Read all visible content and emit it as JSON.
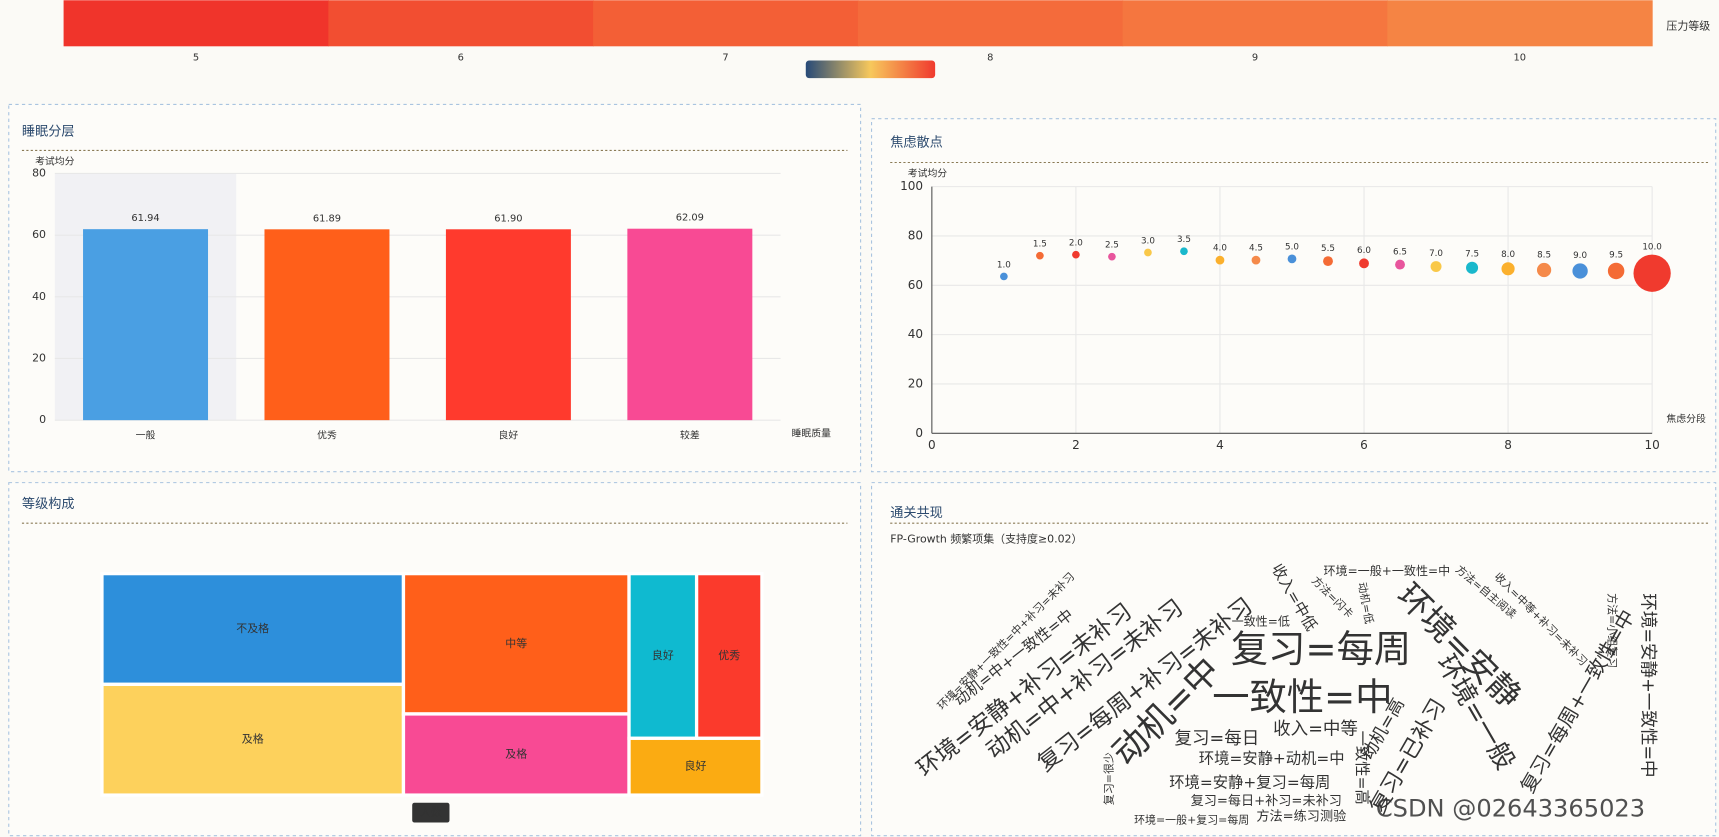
{
  "chart_data": [
    {
      "type": "heatmap",
      "categories": [
        5,
        6,
        7,
        8,
        9,
        10
      ],
      "colors": [
        "#f0342b",
        "#f24e31",
        "#f35f36",
        "#f46b3b",
        "#f5763f",
        "#f58444"
      ],
      "label": "压力等级",
      "gradient": [
        "#274a78",
        "#f7c85c",
        "#f03a2e"
      ]
    },
    {
      "type": "bar",
      "title": "睡眠分层",
      "y_label": "考试均分",
      "x_label": "睡眠质量",
      "categories": [
        "一般",
        "优秀",
        "良好",
        "较差"
      ],
      "values": [
        61.94,
        61.89,
        61.9,
        62.09
      ],
      "value_labels": [
        "61.94",
        "61.89",
        "61.90",
        "62.09"
      ],
      "colors": [
        "#4a9fe3",
        "#ff5f1a",
        "#ff3a2d",
        "#f84a94"
      ],
      "ylim": [
        0,
        80
      ],
      "yticks": [
        0,
        20,
        40,
        60,
        80
      ],
      "grid": true
    },
    {
      "type": "scatter",
      "title": "焦虑散点",
      "y_label": "考试均分",
      "x_label": "焦虑分段",
      "x": [
        1.0,
        1.5,
        2.0,
        2.5,
        3.0,
        3.5,
        4.0,
        4.5,
        5.0,
        5.5,
        6.0,
        6.5,
        7.0,
        7.5,
        8.0,
        8.5,
        9.0,
        9.5,
        10.0
      ],
      "values": [
        63.6,
        72,
        72.4,
        71.6,
        73.3,
        73.8,
        70.2,
        70.2,
        70.7,
        69.8,
        68.9,
        68.4,
        67.6,
        67.1,
        66.7,
        66.2,
        65.8,
        65.8,
        64.9
      ],
      "sizes": [
        3.5,
        3.5,
        3.5,
        3.5,
        3.5,
        3.5,
        4,
        4,
        4,
        4.5,
        4.5,
        4.5,
        5,
        5.5,
        6,
        6.5,
        7,
        7.5,
        17
      ],
      "point_labels": [
        "1.0",
        "1.5",
        "2.0",
        "2.5",
        "3.0",
        "3.5",
        "4.0",
        "4.5",
        "5.0",
        "5.5",
        "6.0",
        "6.5",
        "7.0",
        "7.5",
        "8.0",
        "8.5",
        "9.0",
        "9.5",
        "10.0"
      ],
      "colors": [
        "#4a90d9",
        "#f46b35",
        "#f03a2e",
        "#e8559d",
        "#f9c849",
        "#1ab8cc",
        "#fbb02d",
        "#f58a4a",
        "#4a90d9",
        "#f46b35",
        "#f03a2e",
        "#e8559d",
        "#f9c849",
        "#1ab8cc",
        "#fbb02d",
        "#f58a4a",
        "#4a90d9",
        "#f46b35",
        "#f03a2e"
      ],
      "xlim": [
        0,
        10
      ],
      "xticks": [
        0,
        2,
        4,
        6,
        8,
        10
      ],
      "ylim": [
        0,
        100
      ],
      "yticks": [
        0,
        20,
        40,
        60,
        80,
        100
      ],
      "grid": true
    },
    {
      "type": "treemap",
      "title": "等级构成",
      "label": "人数",
      "items": [
        {
          "children": [
            {
              "name": "不及格",
              "value": 270,
              "color": "#2d8fdb"
            },
            {
              "name": "及格",
              "value": 270,
              "color": "#fdd15c"
            }
          ]
        },
        {
          "children": [
            {
              "name": "中等",
              "value": 256,
              "color": "#ff5f1a"
            },
            {
              "name": "及格",
              "value": 148,
              "color": "#f84a94"
            }
          ]
        },
        {
          "children": [
            {
              "children": [
                {
                  "name": "良好",
                  "value": 90,
                  "color": "#0fbad0"
                },
                {
                  "name": "优秀",
                  "value": 87,
                  "color": "#fb3a2c"
                }
              ]
            },
            {
              "name": "良好",
              "value": 61,
              "color": "#fbab12"
            }
          ]
        }
      ]
    },
    {
      "type": "wordcloud",
      "title": "通关共现",
      "subtitle": "FP-Growth 频繁项集（支持度≥0.02）",
      "words": [
        {
          "name": "复习=每周",
          "size": 34,
          "color": "#e8559d"
        },
        {
          "name": "一致性=中",
          "size": 34,
          "color": "#f46b35"
        },
        {
          "name": "动机=中",
          "size": 32,
          "color": "#f0472e"
        },
        {
          "name": "环境=安静",
          "size": 30,
          "color": "#f5a623"
        },
        {
          "name": "环境=安静+补习=未补习",
          "size": 21,
          "color": "#f05a2e"
        },
        {
          "name": "动机=中+补习=未补习",
          "size": 21,
          "color": "#3b86d0"
        },
        {
          "name": "复习=每周+补习=未补习",
          "size": 21,
          "color": "#f47c35"
        },
        {
          "name": "环境=一般",
          "size": 24,
          "color": "#f5a623"
        },
        {
          "name": "收入=中等",
          "size": 16,
          "color": "#e8559d"
        },
        {
          "name": "复习=每日",
          "size": 16,
          "color": "#e8559d"
        },
        {
          "name": "环境=安静+动机=中",
          "size": 14,
          "color": "#e8559d"
        },
        {
          "name": "环境=安静+复习=每周",
          "size": 14,
          "color": "#1ab8cc"
        },
        {
          "name": "复习=每日+补习=未补习",
          "size": 12,
          "color": "#3b86d0"
        },
        {
          "name": "方法=练习测验",
          "size": 12,
          "color": "#3b86d0"
        },
        {
          "name": "环境=一般+复习=每周",
          "size": 10,
          "color": "#f46b35"
        },
        {
          "name": "收入=中低",
          "size": 14,
          "color": "#f5a623"
        },
        {
          "name": "一致性=低",
          "size": 11,
          "color": "#e8559d"
        },
        {
          "name": "环境=一般+一致性=中",
          "size": 11,
          "color": "#e8559d"
        },
        {
          "name": "方法=自主阅读",
          "size": 10,
          "color": "#f46b35"
        },
        {
          "name": "动机=低",
          "size": 10,
          "color": "#f46b35"
        },
        {
          "name": "方法=闪卡",
          "size": 10,
          "color": "#e8559d"
        },
        {
          "name": "收入=中等+补习=未补习",
          "size": 10,
          "color": "#e8559d"
        },
        {
          "name": "复习=已补习",
          "size": 20,
          "color": "#1ab8cc"
        },
        {
          "name": "一致性=高",
          "size": 14,
          "color": "#f46b35"
        },
        {
          "name": "动机=高",
          "size": 16,
          "color": "#f5a623"
        },
        {
          "name": "复习=每周+一致性=中",
          "size": 18,
          "color": "#f46b35"
        },
        {
          "name": "环境=安静+一致性=中",
          "size": 16,
          "color": "#3b86d0"
        },
        {
          "name": "方法=小组复习",
          "size": 10,
          "color": "#f5a623"
        },
        {
          "name": "环境=安静+一致性=中+补习=未补习",
          "size": 10,
          "color": "#1ab8cc"
        },
        {
          "name": "动机=中+一致性=中",
          "size": 14,
          "color": "#f46b35"
        },
        {
          "name": "复习=很少",
          "size": 10,
          "color": "#1ab8cc"
        }
      ]
    }
  ],
  "watermark": "CSDN @02643365023"
}
